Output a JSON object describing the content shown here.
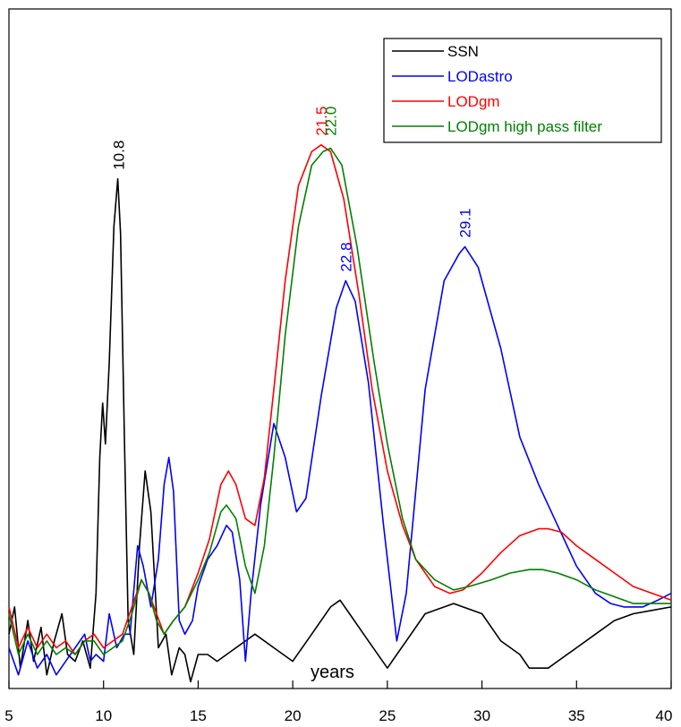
{
  "chart_data": {
    "type": "line",
    "xlabel": "years",
    "ylabel": "",
    "xlim": [
      5,
      40
    ],
    "ylim": [
      0,
      1
    ],
    "x_ticks": [
      5,
      10,
      15,
      20,
      25,
      30,
      35,
      40
    ],
    "y_ticks_shown": false,
    "grid": false,
    "legend": {
      "placement": "top-right"
    },
    "series": [
      {
        "name": "SSN",
        "color": "#000000",
        "points": [
          [
            5,
            0.08
          ],
          [
            5.3,
            0.12
          ],
          [
            5.6,
            0.03
          ],
          [
            6,
            0.1
          ],
          [
            6.3,
            0.04
          ],
          [
            6.7,
            0.09
          ],
          [
            7,
            0.02
          ],
          [
            7.4,
            0.07
          ],
          [
            7.8,
            0.11
          ],
          [
            8.1,
            0.05
          ],
          [
            8.5,
            0.04
          ],
          [
            8.9,
            0.07
          ],
          [
            9.3,
            0.03
          ],
          [
            9.6,
            0.14
          ],
          [
            9.8,
            0.34
          ],
          [
            9.95,
            0.42
          ],
          [
            10.1,
            0.36
          ],
          [
            10.3,
            0.48
          ],
          [
            10.55,
            0.68
          ],
          [
            10.75,
            0.75
          ],
          [
            10.9,
            0.67
          ],
          [
            11.1,
            0.37
          ],
          [
            11.3,
            0.1
          ],
          [
            11.6,
            0.05
          ],
          [
            11.9,
            0.21
          ],
          [
            12.2,
            0.32
          ],
          [
            12.5,
            0.26
          ],
          [
            12.9,
            0.06
          ],
          [
            13.3,
            0.08
          ],
          [
            13.6,
            0.02
          ],
          [
            14,
            0.06
          ],
          [
            14.3,
            0.05
          ],
          [
            14.6,
            0.01
          ],
          [
            15,
            0.05
          ],
          [
            15.5,
            0.05
          ],
          [
            16,
            0.04
          ],
          [
            17,
            0.06
          ],
          [
            18,
            0.08
          ],
          [
            19,
            0.06
          ],
          [
            20,
            0.04
          ],
          [
            21,
            0.08
          ],
          [
            22,
            0.12
          ],
          [
            22.5,
            0.13
          ],
          [
            23,
            0.11
          ],
          [
            24,
            0.07
          ],
          [
            25,
            0.03
          ],
          [
            25.5,
            0.05
          ],
          [
            26,
            0.07
          ],
          [
            27,
            0.11
          ],
          [
            28.5,
            0.125
          ],
          [
            30,
            0.11
          ],
          [
            31,
            0.07
          ],
          [
            32,
            0.05
          ],
          [
            32.5,
            0.03
          ],
          [
            33.5,
            0.03
          ],
          [
            34,
            0.04
          ],
          [
            35,
            0.06
          ],
          [
            36,
            0.08
          ],
          [
            37,
            0.1
          ],
          [
            38,
            0.11
          ],
          [
            39,
            0.115
          ],
          [
            40,
            0.12
          ]
        ]
      },
      {
        "name": "LODastro",
        "color": "#0000ff",
        "points": [
          [
            5,
            0.06
          ],
          [
            5.5,
            0.02
          ],
          [
            6,
            0.07
          ],
          [
            6.5,
            0.03
          ],
          [
            7,
            0.05
          ],
          [
            7.5,
            0.02
          ],
          [
            8,
            0.04
          ],
          [
            8.5,
            0.06
          ],
          [
            9,
            0.08
          ],
          [
            9.3,
            0.04
          ],
          [
            9.6,
            0.05
          ],
          [
            10,
            0.04
          ],
          [
            10.3,
            0.11
          ],
          [
            10.7,
            0.06
          ],
          [
            11.1,
            0.08
          ],
          [
            11.4,
            0.08
          ],
          [
            11.8,
            0.21
          ],
          [
            12.1,
            0.18
          ],
          [
            12.5,
            0.12
          ],
          [
            12.9,
            0.19
          ],
          [
            13.2,
            0.3
          ],
          [
            13.45,
            0.34
          ],
          [
            13.7,
            0.29
          ],
          [
            14,
            0.1
          ],
          [
            14.3,
            0.08
          ],
          [
            14.7,
            0.1
          ],
          [
            15,
            0.15
          ],
          [
            15.5,
            0.19
          ],
          [
            16,
            0.21
          ],
          [
            16.5,
            0.24
          ],
          [
            16.8,
            0.23
          ],
          [
            17.2,
            0.16
          ],
          [
            17.5,
            0.04
          ],
          [
            17.8,
            0.14
          ],
          [
            18.3,
            0.27
          ],
          [
            19,
            0.39
          ],
          [
            19.6,
            0.34
          ],
          [
            20.2,
            0.26
          ],
          [
            20.7,
            0.28
          ],
          [
            21.5,
            0.43
          ],
          [
            22.3,
            0.56
          ],
          [
            22.8,
            0.6
          ],
          [
            23.3,
            0.57
          ],
          [
            24,
            0.45
          ],
          [
            24.8,
            0.24
          ],
          [
            25.5,
            0.07
          ],
          [
            26,
            0.14
          ],
          [
            27,
            0.44
          ],
          [
            28,
            0.6
          ],
          [
            28.8,
            0.64
          ],
          [
            29.1,
            0.65
          ],
          [
            29.8,
            0.62
          ],
          [
            31,
            0.5
          ],
          [
            32,
            0.37
          ],
          [
            33,
            0.3
          ],
          [
            34,
            0.24
          ],
          [
            35,
            0.18
          ],
          [
            36,
            0.14
          ],
          [
            36.8,
            0.125
          ],
          [
            37.5,
            0.12
          ],
          [
            38.5,
            0.12
          ],
          [
            39.3,
            0.13
          ],
          [
            40,
            0.14
          ]
        ]
      },
      {
        "name": "LODgm",
        "color": "#ff0000",
        "points": [
          [
            5,
            0.12
          ],
          [
            5.5,
            0.06
          ],
          [
            6,
            0.09
          ],
          [
            6.5,
            0.06
          ],
          [
            7,
            0.08
          ],
          [
            7.5,
            0.06
          ],
          [
            8,
            0.07
          ],
          [
            8.5,
            0.05
          ],
          [
            9,
            0.07
          ],
          [
            9.5,
            0.08
          ],
          [
            10,
            0.06
          ],
          [
            10.5,
            0.07
          ],
          [
            11,
            0.08
          ],
          [
            11.5,
            0.12
          ],
          [
            12,
            0.16
          ],
          [
            12.4,
            0.14
          ],
          [
            12.8,
            0.11
          ],
          [
            13.2,
            0.08
          ],
          [
            13.7,
            0.1
          ],
          [
            14.3,
            0.12
          ],
          [
            15,
            0.17
          ],
          [
            15.6,
            0.22
          ],
          [
            16.2,
            0.3
          ],
          [
            16.6,
            0.32
          ],
          [
            17,
            0.3
          ],
          [
            17.5,
            0.25
          ],
          [
            18,
            0.24
          ],
          [
            18.5,
            0.31
          ],
          [
            19,
            0.44
          ],
          [
            19.6,
            0.6
          ],
          [
            20.3,
            0.74
          ],
          [
            21,
            0.79
          ],
          [
            21.5,
            0.8
          ],
          [
            22,
            0.79
          ],
          [
            22.7,
            0.72
          ],
          [
            23.5,
            0.58
          ],
          [
            24.2,
            0.44
          ],
          [
            25,
            0.32
          ],
          [
            25.8,
            0.24
          ],
          [
            26.5,
            0.19
          ],
          [
            27.5,
            0.15
          ],
          [
            28.3,
            0.14
          ],
          [
            29,
            0.145
          ],
          [
            30,
            0.17
          ],
          [
            31,
            0.2
          ],
          [
            32,
            0.225
          ],
          [
            33,
            0.235
          ],
          [
            33.5,
            0.235
          ],
          [
            34.2,
            0.23
          ],
          [
            35,
            0.21
          ],
          [
            36,
            0.19
          ],
          [
            37,
            0.17
          ],
          [
            38,
            0.15
          ],
          [
            39,
            0.14
          ],
          [
            40,
            0.13
          ]
        ]
      },
      {
        "name": "LODgm high pass filter",
        "color": "#008000",
        "points": [
          [
            5,
            0.11
          ],
          [
            5.5,
            0.05
          ],
          [
            6,
            0.08
          ],
          [
            6.5,
            0.05
          ],
          [
            7,
            0.07
          ],
          [
            7.5,
            0.05
          ],
          [
            8,
            0.06
          ],
          [
            8.5,
            0.05
          ],
          [
            9,
            0.07
          ],
          [
            9.5,
            0.07
          ],
          [
            10,
            0.05
          ],
          [
            10.5,
            0.06
          ],
          [
            11,
            0.07
          ],
          [
            11.5,
            0.11
          ],
          [
            12,
            0.16
          ],
          [
            12.4,
            0.14
          ],
          [
            12.8,
            0.1
          ],
          [
            13.2,
            0.08
          ],
          [
            13.7,
            0.1
          ],
          [
            14.3,
            0.12
          ],
          [
            15,
            0.16
          ],
          [
            15.6,
            0.2
          ],
          [
            16.2,
            0.26
          ],
          [
            16.5,
            0.27
          ],
          [
            17,
            0.25
          ],
          [
            17.5,
            0.18
          ],
          [
            18,
            0.14
          ],
          [
            18.5,
            0.21
          ],
          [
            19,
            0.34
          ],
          [
            19.6,
            0.52
          ],
          [
            20.3,
            0.68
          ],
          [
            21,
            0.77
          ],
          [
            21.6,
            0.79
          ],
          [
            22,
            0.795
          ],
          [
            22.6,
            0.77
          ],
          [
            23.4,
            0.65
          ],
          [
            24.3,
            0.48
          ],
          [
            25,
            0.36
          ],
          [
            25.8,
            0.25
          ],
          [
            26.5,
            0.19
          ],
          [
            27.5,
            0.16
          ],
          [
            28.5,
            0.145
          ],
          [
            29.3,
            0.15
          ],
          [
            30.5,
            0.16
          ],
          [
            31.5,
            0.17
          ],
          [
            32.5,
            0.175
          ],
          [
            33.2,
            0.175
          ],
          [
            34,
            0.17
          ],
          [
            35,
            0.16
          ],
          [
            36,
            0.145
          ],
          [
            37,
            0.135
          ],
          [
            38,
            0.125
          ],
          [
            39,
            0.125
          ],
          [
            40,
            0.125
          ]
        ]
      }
    ],
    "annotations": [
      {
        "text": "10.8",
        "x": 10.8,
        "y": 0.75,
        "color": "#000000"
      },
      {
        "text": "21.5",
        "x": 21.5,
        "y": 0.8,
        "color": "#ff0000"
      },
      {
        "text": "22.0",
        "x": 22.0,
        "y": 0.8,
        "color": "#008000"
      },
      {
        "text": "22.8",
        "x": 22.8,
        "y": 0.6,
        "color": "#0000ff"
      },
      {
        "text": "29.1",
        "x": 29.1,
        "y": 0.65,
        "color": "#0000ff"
      }
    ]
  }
}
